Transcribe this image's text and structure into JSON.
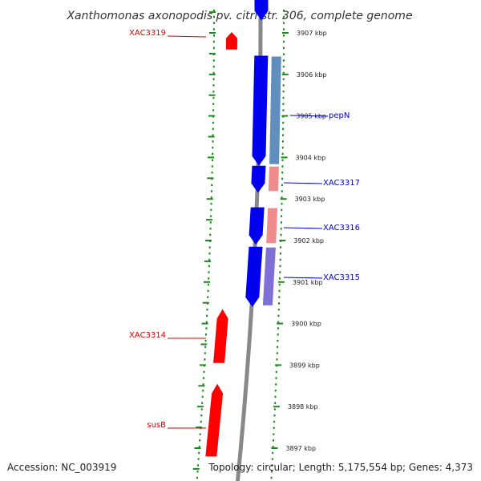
{
  "title": "Xanthomonas axonopodis pv. citri str. 306, complete genome",
  "footer": {
    "accession": "Accession: NC_003919",
    "topology": "Topology: circular; Length: 5,175,554 bp; Genes: 4,373"
  },
  "colors": {
    "forward_gene": "#ff0000",
    "reverse_gene": "#0000ee",
    "label_forward": "#dd0000",
    "label_reverse": "#0000cc",
    "backbone": "#888888",
    "ticks": "#1a8a1a",
    "pepN_overlay": "#4f82b8",
    "XAC3317_overlay": "#ee8080",
    "XAC3316_overlay": "#ee8080",
    "XAC3315_overlay": "#7060d0"
  },
  "chart_data": {
    "type": "genome-map",
    "axis_unit": "kbp",
    "ticks": [
      {
        "kbp": 3907,
        "label": "3907 kbp"
      },
      {
        "kbp": 3906,
        "label": "3906 kbp"
      },
      {
        "kbp": 3905,
        "label": "3905 kbp"
      },
      {
        "kbp": 3904,
        "label": "3904 kbp"
      },
      {
        "kbp": 3903,
        "label": "3903 kbp"
      },
      {
        "kbp": 3902,
        "label": "3902 kbp"
      },
      {
        "kbp": 3901,
        "label": "3901 kbp"
      },
      {
        "kbp": 3900,
        "label": "3900 kbp"
      },
      {
        "kbp": 3899,
        "label": "3899 kbp"
      },
      {
        "kbp": 3898,
        "label": "3898 kbp"
      },
      {
        "kbp": 3897,
        "label": "3897 kbp"
      }
    ],
    "genes": [
      {
        "name": "XAC3319",
        "strand": "+",
        "start_kbp": 3906.6,
        "end_kbp": 3907.02,
        "labeled": true
      },
      {
        "name": "pepN",
        "strand": "-",
        "start_kbp": 3903.8,
        "end_kbp": 3906.45,
        "labeled": true
      },
      {
        "name": "XAC3317",
        "strand": "-",
        "start_kbp": 3903.15,
        "end_kbp": 3903.8,
        "labeled": true
      },
      {
        "name": "XAC3316",
        "strand": "-",
        "start_kbp": 3901.9,
        "end_kbp": 3902.8,
        "labeled": true
      },
      {
        "name": "XAC3315",
        "strand": "-",
        "start_kbp": 3900.4,
        "end_kbp": 3901.85,
        "labeled": true
      },
      {
        "name": "XAC3314",
        "strand": "+",
        "start_kbp": 3899.05,
        "end_kbp": 3900.35,
        "labeled": true
      },
      {
        "name": "susB",
        "strand": "+",
        "start_kbp": 3896.8,
        "end_kbp": 3898.55,
        "labeled": true
      },
      {
        "name": "",
        "strand": "-",
        "start_kbp": 3907.3,
        "end_kbp": 3908.2,
        "labeled": false
      }
    ]
  }
}
